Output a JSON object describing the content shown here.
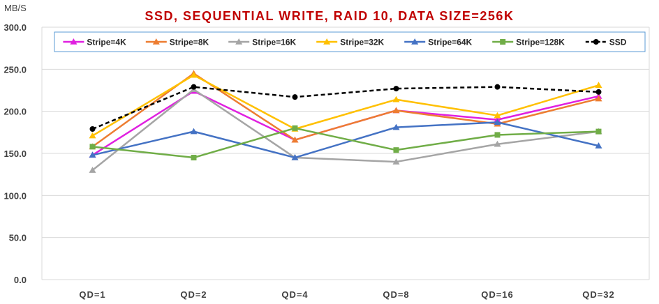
{
  "chart_data": {
    "type": "line",
    "title": "SSD, SEQUENTIAL WRITE, RAID 10, DATA SIZE=256K",
    "ylabel": "MB/S",
    "xlabel": "",
    "categories": [
      "QD=1",
      "QD=2",
      "QD=4",
      "QD=8",
      "QD=16",
      "QD=32"
    ],
    "ylim": [
      0,
      300
    ],
    "yticks": [
      "0.0",
      "50.0",
      "100.0",
      "150.0",
      "200.0",
      "250.0",
      "300.0"
    ],
    "grid": true,
    "legend_position": "top",
    "title_color": "#C00000",
    "series": [
      {
        "name": "Stripe=4K",
        "color": "#E020E0",
        "marker": "triangle",
        "dash": false,
        "values": [
          148,
          224,
          166,
          201,
          190,
          218
        ]
      },
      {
        "name": "Stripe=8K",
        "color": "#ED7D31",
        "marker": "triangle",
        "dash": false,
        "values": [
          158,
          245,
          166,
          201,
          185,
          215
        ]
      },
      {
        "name": "Stripe=16K",
        "color": "#A5A5A5",
        "marker": "triangle",
        "dash": false,
        "values": [
          130,
          226,
          145,
          140,
          161,
          176
        ]
      },
      {
        "name": "Stripe=32K",
        "color": "#FFC000",
        "marker": "triangle",
        "dash": false,
        "values": [
          171,
          243,
          179,
          214,
          195,
          231
        ]
      },
      {
        "name": "Stripe=64K",
        "color": "#4472C4",
        "marker": "triangle",
        "dash": false,
        "values": [
          148,
          176,
          145,
          181,
          187,
          159
        ]
      },
      {
        "name": "Stripe=128K",
        "color": "#70AD47",
        "marker": "square",
        "dash": false,
        "values": [
          158,
          145,
          180,
          154,
          172,
          176
        ]
      },
      {
        "name": "SSD",
        "color": "#000000",
        "marker": "circle",
        "dash": true,
        "values": [
          179,
          229,
          217,
          227,
          229,
          223
        ]
      }
    ]
  }
}
